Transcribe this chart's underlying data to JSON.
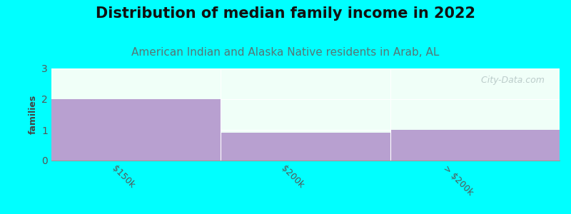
{
  "title": "Distribution of median family income in 2022",
  "subtitle": "American Indian and Alaska Native residents in Arab, AL",
  "categories": [
    "$150k",
    "$200k",
    "> $200k"
  ],
  "values": [
    2,
    0.9,
    1
  ],
  "bar_color": "#b8a0d0",
  "background_color": "#00ffff",
  "plot_bg_color": "#f0fff8",
  "ylabel": "families",
  "ylim": [
    0,
    3
  ],
  "yticks": [
    0,
    1,
    2,
    3
  ],
  "title_fontsize": 15,
  "subtitle_fontsize": 11,
  "subtitle_color": "#557777",
  "watermark": "  City-Data.com",
  "tick_label_fontsize": 9,
  "ylabel_fontsize": 9
}
